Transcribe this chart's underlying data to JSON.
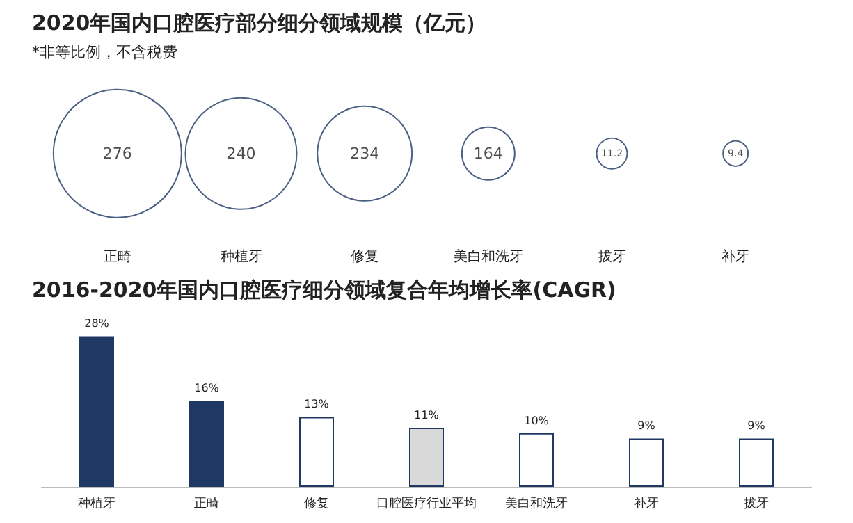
{
  "chart_data": [
    {
      "type": "other",
      "title": "2020年国内口腔医疗部分细分领域规模（亿元）",
      "subtitle": "*非等比例，不含税费",
      "categories": [
        "正畸",
        "种植牙",
        "修复",
        "美白和洗牙",
        "拔牙",
        "补牙"
      ],
      "values": [
        276,
        240,
        234,
        164,
        11.2,
        9.4
      ],
      "color": "#1f3864",
      "data_labels": true
    },
    {
      "type": "bar",
      "title": "2016-2020年国内口腔医疗细分领域复合年均增长率(CAGR)",
      "categories": [
        "种植牙",
        "正畸",
        "修复",
        "口腔医疗行业平均",
        "美白和洗牙",
        "补牙",
        "拔牙"
      ],
      "values": [
        28,
        16,
        13,
        11,
        10,
        9,
        9
      ],
      "colors": [
        "#1f3864",
        "#1f3864",
        "#ffffff",
        "#d9d9d9",
        "#ffffff",
        "#ffffff",
        "#ffffff"
      ],
      "value_labels": [
        "28%",
        "16%",
        "13%",
        "11%",
        "10%",
        "9%",
        "9%"
      ]
    }
  ]
}
